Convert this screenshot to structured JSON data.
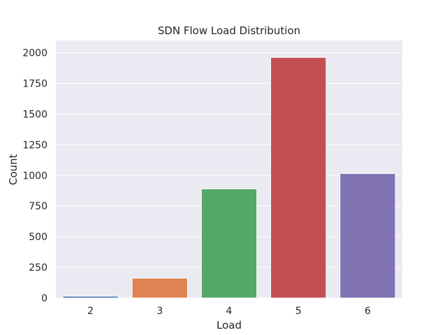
{
  "chart_data": {
    "type": "bar",
    "title": "SDN Flow Load Distribution",
    "xlabel": "Load",
    "ylabel": "Count",
    "categories": [
      "2",
      "3",
      "4",
      "5",
      "6"
    ],
    "values": [
      15,
      162,
      890,
      1962,
      1015
    ],
    "ylim": [
      0,
      2100
    ],
    "yticks": [
      0,
      250,
      500,
      750,
      1000,
      1250,
      1500,
      1750,
      2000
    ],
    "grid": true,
    "legend": "none",
    "colors": [
      "#4c72b0",
      "#dd8452",
      "#55a868",
      "#c44e52",
      "#8172b3"
    ],
    "background": "#eaeaf2",
    "grid_color": "#ffffff"
  }
}
